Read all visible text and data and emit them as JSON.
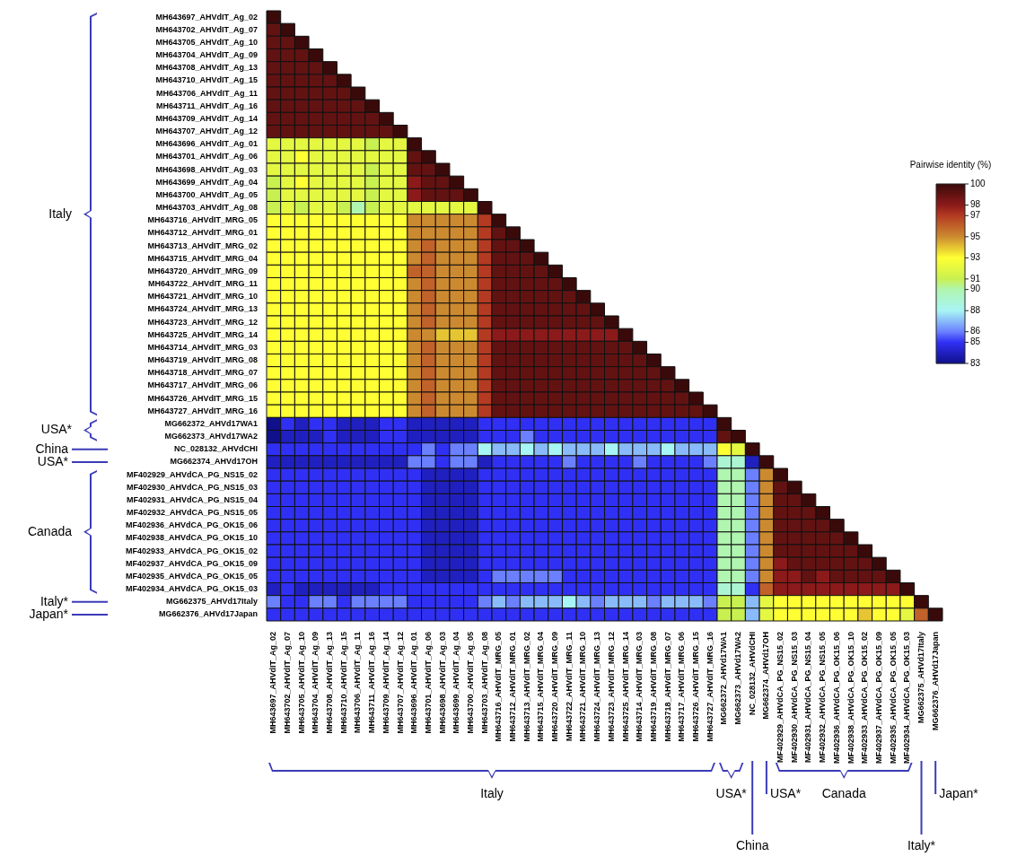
{
  "chart_data": {
    "type": "heatmap",
    "clabel": "Pairwise identity (%)",
    "clim": [
      83,
      100
    ],
    "cticks": [
      100,
      98,
      97,
      95,
      93,
      91,
      90,
      88,
      86,
      85,
      83
    ],
    "categories": [
      "MH643697_AHVdIT_Ag_02",
      "MH643702_AHVdIT_Ag_07",
      "MH643705_AHVdIT_Ag_10",
      "MH643704_AHVdIT_Ag_09",
      "MH643708_AHVdIT_Ag_13",
      "MH643710_AHVdIT_Ag_15",
      "MH643706_AHVdIT_Ag_11",
      "MH643711_AHVdIT_Ag_16",
      "MH643709_AHVdIT_Ag_14",
      "MH643707_AHVdIT_Ag_12",
      "MH643696_AHVdIT_Ag_01",
      "MH643701_AHVdIT_Ag_06",
      "MH643698_AHVdIT_Ag_03",
      "MH643699_AHVdIT_Ag_04",
      "MH643700_AHVdIT_Ag_05",
      "MH643703_AHVdIT_Ag_08",
      "MH643716_AHVdIT_MRG_05",
      "MH643712_AHVdIT_MRG_01",
      "MH643713_AHVdIT_MRG_02",
      "MH643715_AHVdIT_MRG_04",
      "MH643720_AHVdIT_MRG_09",
      "MH643722_AHVdIT_MRG_11",
      "MH643721_AHVdIT_MRG_10",
      "MH643724_AHVdIT_MRG_13",
      "MH643723_AHVdIT_MRG_12",
      "MH643725_AHVdIT_MRG_14",
      "MH643714_AHVdIT_MRG_03",
      "MH643719_AHVdIT_MRG_08",
      "MH643718_AHVdIT_MRG_07",
      "MH643717_AHVdIT_MRG_06",
      "MH643726_AHVdIT_MRG_15",
      "MH643727_AHVdIT_MRG_16",
      "MG662372_AHVd17WA1",
      "MG662373_AHVd17WA2",
      "NC_028132_AHVdCHI",
      "MG662374_AHVd17OH",
      "MF402929_AHVdCA_PG_NS15_02",
      "MF402930_AHVdCA_PG_NS15_03",
      "MF402931_AHVdCA_PG_NS15_04",
      "MF402932_AHVdCA_PG_NS15_05",
      "MF402936_AHVdCA_PG_OK15_06",
      "MF402938_AHVdCA_PG_OK15_10",
      "MF402933_AHVdCA_PG_OK15_02",
      "MF402937_AHVdCA_PG_OK15_09",
      "MF402935_AHVdCA_PG_OK15_05",
      "MF402934_AHVdCA_PG_OK15_03",
      "MG662375_AHVd17Italy",
      "MG662376_AHVd17Japan"
    ],
    "y_categories": [
      "MH643697_AHVdIT_Ag_02",
      "MH643702_AHVdIT_Ag_07",
      "MH643705_AHVdIT_Ag_10",
      "MH643704_AHVdIT_Ag_09",
      "MH643708_AHVdIT_Ag_13",
      "MH643710_AHVdIT_Ag_15",
      "MH643706_AHVdIT_Ag_11",
      "MH643711_AHVdIT_Ag_16",
      "MH643709_AHVdIT_Ag_14",
      "MH643707_AHVdIT_Ag_12",
      "MH643696_AHVdIT_Ag_01",
      "MH643701_AHVdIT_Ag_06",
      "MH643698_AHVdIT_Ag_03",
      "MH643699_AHVdIT_Ag_04",
      "MH643700_AHVdIT_Ag_05",
      "MH643703_AHVdIT_Ag_08",
      "MH643716_AHVdIT_MRG_05",
      "MH643712_AHVdIT_MRG_01",
      "MH643713_AHVdIT_MRG_02",
      "MH643715_AHVdIT_MRG_04",
      "MH643720_AHVdIT_MRG_09",
      "MH643722_AHVdIT_MRG_11",
      "MH643721_AHVdIT_MRG_10",
      "MH643724_AHVdIT_MRG_13",
      "MH643723_AHVdIT_MRG_12",
      "MH643725_AHVdIT_MRG_14",
      "MH643714_AHVdIT_MRG_03",
      "MH643719_AHVdIT_MRG_08",
      "MH643718_AHVdIT_MRG_07",
      "MH643717_AHVdIT_MRG_06",
      "MH643726_AHVdIT_MRG_15",
      "MH643727_AHVdIT_MRG_16",
      "MG662372_AHVd17WA1",
      "MG662373_AHVd17WA2",
      "NC_028132_AHVdCHI",
      "MG662374_AHVd17OH",
      "MF402929_AHVdCA_PG_NS15_02",
      "MF402930_AHVdCA_PG_NS15_03",
      "MF402931_AHVdCA_PG_NS15_04",
      "MF402932_AHVdCA_PG_NS15_05",
      "MF402936_AHVdCA_PG_OK15_06",
      "MF402938_AHVdCA_PG_OK15_10",
      "MF402933_AHVdCA_PG_OK15_02",
      "MF402937_AHVdCA_PG_OK15_09",
      "MF402935_AHVdCA_PG_OK15_05",
      "MF402934_AHVdCA_PG_OK15_03",
      "MG662375_AHVd17Italy",
      "MG662376_AHVd17Japan"
    ],
    "cells": [
      [
        100,
        null,
        null,
        null,
        null,
        null,
        null,
        null,
        null,
        null,
        null,
        null,
        null,
        null,
        null,
        null,
        null,
        null,
        null,
        null,
        null,
        null,
        null,
        null,
        null,
        null,
        null,
        null,
        null,
        null,
        null,
        null,
        null,
        null,
        null,
        null,
        null,
        null,
        null,
        null,
        null,
        null,
        null,
        null,
        null,
        null,
        null,
        null
      ],
      [
        99,
        100,
        null,
        null,
        null,
        null,
        null,
        null,
        null,
        null,
        null,
        null,
        null,
        null,
        null,
        null,
        null,
        null,
        null,
        null,
        null,
        null,
        null,
        null,
        null,
        null,
        null,
        null,
        null,
        null,
        null,
        null,
        null,
        null,
        null,
        null,
        null,
        null,
        null,
        null,
        null,
        null,
        null,
        null,
        null,
        null,
        null,
        null
      ],
      [
        99,
        99,
        100,
        null,
        null,
        null,
        null,
        null,
        null,
        null,
        null,
        null,
        null,
        null,
        null,
        null,
        null,
        null,
        null,
        null,
        null,
        null,
        null,
        null,
        null,
        null,
        null,
        null,
        null,
        null,
        null,
        null,
        null,
        null,
        null,
        null,
        null,
        null,
        null,
        null,
        null,
        null,
        null,
        null,
        null,
        null,
        null,
        null
      ],
      [
        99,
        99,
        99,
        100,
        null,
        null,
        null,
        null,
        null,
        null,
        null,
        null,
        null,
        null,
        null,
        null,
        null,
        null,
        null,
        null,
        null,
        null,
        null,
        null,
        null,
        null,
        null,
        null,
        null,
        null,
        null,
        null,
        null,
        null,
        null,
        null,
        null,
        null,
        null,
        null,
        null,
        null,
        null,
        null,
        null,
        null,
        null,
        null
      ],
      [
        99,
        99,
        99,
        99,
        100,
        null,
        null,
        null,
        null,
        null,
        null,
        null,
        null,
        null,
        null,
        null,
        null,
        null,
        null,
        null,
        null,
        null,
        null,
        null,
        null,
        null,
        null,
        null,
        null,
        null,
        null,
        null,
        null,
        null,
        null,
        null,
        null,
        null,
        null,
        null,
        null,
        null,
        null,
        null,
        null,
        null,
        null,
        null
      ],
      [
        99,
        99,
        99,
        99,
        99,
        100,
        null,
        null,
        null,
        null,
        null,
        null,
        null,
        null,
        null,
        null,
        null,
        null,
        null,
        null,
        null,
        null,
        null,
        null,
        null,
        null,
        null,
        null,
        null,
        null,
        null,
        null,
        null,
        null,
        null,
        null,
        null,
        null,
        null,
        null,
        null,
        null,
        null,
        null,
        null,
        null,
        null,
        null
      ],
      [
        99,
        99,
        99,
        99,
        99,
        99,
        100,
        null,
        null,
        null,
        null,
        null,
        null,
        null,
        null,
        null,
        null,
        null,
        null,
        null,
        null,
        null,
        null,
        null,
        null,
        null,
        null,
        null,
        null,
        null,
        null,
        null,
        null,
        null,
        null,
        null,
        null,
        null,
        null,
        null,
        null,
        null,
        null,
        null,
        null,
        null,
        null,
        null
      ],
      [
        99,
        99,
        99,
        99,
        99,
        99,
        99,
        100,
        null,
        null,
        null,
        null,
        null,
        null,
        null,
        null,
        null,
        null,
        null,
        null,
        null,
        null,
        null,
        null,
        null,
        null,
        null,
        null,
        null,
        null,
        null,
        null,
        null,
        null,
        null,
        null,
        null,
        null,
        null,
        null,
        null,
        null,
        null,
        null,
        null,
        null,
        null,
        null
      ],
      [
        99,
        99,
        99,
        99,
        99,
        99,
        99,
        99,
        100,
        null,
        null,
        null,
        null,
        null,
        null,
        null,
        null,
        null,
        null,
        null,
        null,
        null,
        null,
        null,
        null,
        null,
        null,
        null,
        null,
        null,
        null,
        null,
        null,
        null,
        null,
        null,
        null,
        null,
        null,
        null,
        null,
        null,
        null,
        null,
        null,
        null,
        null,
        null
      ],
      [
        99,
        99,
        99,
        99,
        99,
        99,
        99,
        99,
        99,
        100,
        null,
        null,
        null,
        null,
        null,
        null,
        null,
        null,
        null,
        null,
        null,
        null,
        null,
        null,
        null,
        null,
        null,
        null,
        null,
        null,
        null,
        null,
        null,
        null,
        null,
        null,
        null,
        null,
        null,
        null,
        null,
        null,
        null,
        null,
        null,
        null,
        null,
        null
      ],
      [
        92,
        92,
        92,
        92,
        92,
        92,
        92,
        91,
        92,
        92,
        100,
        null,
        null,
        null,
        null,
        null,
        null,
        null,
        null,
        null,
        null,
        null,
        null,
        null,
        null,
        null,
        null,
        null,
        null,
        null,
        null,
        null,
        null,
        null,
        null,
        null,
        null,
        null,
        null,
        null,
        null,
        null,
        null,
        null,
        null,
        null,
        null,
        null
      ],
      [
        92,
        92,
        93,
        92,
        92,
        92,
        92,
        92,
        92,
        92,
        99,
        100,
        null,
        null,
        null,
        null,
        null,
        null,
        null,
        null,
        null,
        null,
        null,
        null,
        null,
        null,
        null,
        null,
        null,
        null,
        null,
        null,
        null,
        null,
        null,
        null,
        null,
        null,
        null,
        null,
        null,
        null,
        null,
        null,
        null,
        null,
        null,
        null
      ],
      [
        92,
        92,
        92,
        92,
        92,
        92,
        92,
        91,
        92,
        92,
        99,
        99,
        100,
        null,
        null,
        null,
        null,
        null,
        null,
        null,
        null,
        null,
        null,
        null,
        null,
        null,
        null,
        null,
        null,
        null,
        null,
        null,
        null,
        null,
        null,
        null,
        null,
        null,
        null,
        null,
        null,
        null,
        null,
        null,
        null,
        null,
        null,
        null
      ],
      [
        91,
        92,
        93,
        92,
        92,
        92,
        92,
        91,
        92,
        92,
        98,
        99,
        99,
        100,
        null,
        null,
        null,
        null,
        null,
        null,
        null,
        null,
        null,
        null,
        null,
        null,
        null,
        null,
        null,
        null,
        null,
        null,
        null,
        null,
        null,
        null,
        null,
        null,
        null,
        null,
        null,
        null,
        null,
        null,
        null,
        null,
        null,
        null
      ],
      [
        91,
        92,
        92,
        92,
        92,
        92,
        92,
        91,
        92,
        92,
        98,
        99,
        99,
        99,
        100,
        null,
        null,
        null,
        null,
        null,
        null,
        null,
        null,
        null,
        null,
        null,
        null,
        null,
        null,
        null,
        null,
        null,
        null,
        null,
        null,
        null,
        null,
        null,
        null,
        null,
        null,
        null,
        null,
        null,
        null,
        null,
        null,
        null
      ],
      [
        91,
        92,
        91,
        92,
        92,
        91,
        90,
        91,
        92,
        92,
        92,
        92,
        92,
        92,
        92,
        100,
        null,
        null,
        null,
        null,
        null,
        null,
        null,
        null,
        null,
        null,
        null,
        null,
        null,
        null,
        null,
        null,
        null,
        null,
        null,
        null,
        null,
        null,
        null,
        null,
        null,
        null,
        null,
        null,
        null,
        null,
        null,
        null
      ],
      [
        93,
        93,
        93,
        93,
        93,
        93,
        93,
        93,
        93,
        93,
        95,
        95,
        95,
        95,
        95,
        97,
        100,
        null,
        null,
        null,
        null,
        null,
        null,
        null,
        null,
        null,
        null,
        null,
        null,
        null,
        null,
        null,
        null,
        null,
        null,
        null,
        null,
        null,
        null,
        null,
        null,
        null,
        null,
        null,
        null,
        null,
        null,
        null
      ],
      [
        93,
        93,
        93,
        93,
        93,
        93,
        93,
        93,
        93,
        93,
        95,
        95,
        95,
        95,
        95,
        97,
        99,
        100,
        null,
        null,
        null,
        null,
        null,
        null,
        null,
        null,
        null,
        null,
        null,
        null,
        null,
        null,
        null,
        null,
        null,
        null,
        null,
        null,
        null,
        null,
        null,
        null,
        null,
        null,
        null,
        null,
        null,
        null
      ],
      [
        93,
        93,
        93,
        93,
        93,
        93,
        93,
        93,
        93,
        93,
        95,
        96,
        95,
        95,
        95,
        97,
        99,
        99,
        100,
        null,
        null,
        null,
        null,
        null,
        null,
        null,
        null,
        null,
        null,
        null,
        null,
        null,
        null,
        null,
        null,
        null,
        null,
        null,
        null,
        null,
        null,
        null,
        null,
        null,
        null,
        null,
        null,
        null
      ],
      [
        93,
        93,
        93,
        93,
        93,
        93,
        93,
        93,
        93,
        93,
        95,
        96,
        95,
        95,
        95,
        97,
        99,
        99,
        99,
        100,
        null,
        null,
        null,
        null,
        null,
        null,
        null,
        null,
        null,
        null,
        null,
        null,
        null,
        null,
        null,
        null,
        null,
        null,
        null,
        null,
        null,
        null,
        null,
        null,
        null,
        null,
        null,
        null
      ],
      [
        93,
        93,
        93,
        93,
        93,
        93,
        93,
        93,
        93,
        93,
        96,
        96,
        95,
        95,
        95,
        97,
        99,
        99,
        99,
        99,
        100,
        null,
        null,
        null,
        null,
        null,
        null,
        null,
        null,
        null,
        null,
        null,
        null,
        null,
        null,
        null,
        null,
        null,
        null,
        null,
        null,
        null,
        null,
        null,
        null,
        null,
        null,
        null
      ],
      [
        93,
        93,
        93,
        93,
        93,
        93,
        93,
        93,
        93,
        93,
        95,
        96,
        95,
        95,
        95,
        97,
        99,
        99,
        99,
        99,
        99,
        100,
        null,
        null,
        null,
        null,
        null,
        null,
        null,
        null,
        null,
        null,
        null,
        null,
        null,
        null,
        null,
        null,
        null,
        null,
        null,
        null,
        null,
        null,
        null,
        null,
        null,
        null
      ],
      [
        93,
        93,
        93,
        93,
        93,
        93,
        93,
        93,
        93,
        93,
        95,
        96,
        95,
        95,
        95,
        97,
        99,
        99,
        99,
        99,
        99,
        99,
        100,
        null,
        null,
        null,
        null,
        null,
        null,
        null,
        null,
        null,
        null,
        null,
        null,
        null,
        null,
        null,
        null,
        null,
        null,
        null,
        null,
        null,
        null,
        null,
        null,
        null
      ],
      [
        93,
        93,
        93,
        93,
        93,
        93,
        93,
        93,
        93,
        93,
        95,
        96,
        95,
        95,
        95,
        97,
        99,
        99,
        99,
        99,
        99,
        99,
        99,
        100,
        null,
        null,
        null,
        null,
        null,
        null,
        null,
        null,
        null,
        null,
        null,
        null,
        null,
        null,
        null,
        null,
        null,
        null,
        null,
        null,
        null,
        null,
        null,
        null
      ],
      [
        93,
        93,
        93,
        93,
        93,
        93,
        93,
        93,
        93,
        93,
        95,
        96,
        95,
        95,
        95,
        97,
        99,
        99,
        99,
        99,
        99,
        99,
        99,
        99,
        100,
        null,
        null,
        null,
        null,
        null,
        null,
        null,
        null,
        null,
        null,
        null,
        null,
        null,
        null,
        null,
        null,
        null,
        null,
        null,
        null,
        null,
        null,
        null
      ],
      [
        93,
        93,
        93,
        93,
        93,
        93,
        93,
        93,
        93,
        93,
        95,
        95,
        94,
        94,
        94,
        97,
        98,
        98,
        98,
        98,
        98,
        98,
        98,
        98,
        98,
        100,
        null,
        null,
        null,
        null,
        null,
        null,
        null,
        null,
        null,
        null,
        null,
        null,
        null,
        null,
        null,
        null,
        null,
        null,
        null,
        null,
        null,
        null
      ],
      [
        93,
        93,
        93,
        93,
        93,
        93,
        93,
        93,
        93,
        93,
        95,
        96,
        95,
        95,
        95,
        97,
        99,
        99,
        99,
        99,
        99,
        99,
        99,
        99,
        99,
        99,
        100,
        null,
        null,
        null,
        null,
        null,
        null,
        null,
        null,
        null,
        null,
        null,
        null,
        null,
        null,
        null,
        null,
        null,
        null,
        null,
        null,
        null
      ],
      [
        93,
        93,
        93,
        93,
        93,
        93,
        93,
        93,
        93,
        93,
        95,
        96,
        95,
        95,
        95,
        97,
        99,
        99,
        99,
        99,
        99,
        99,
        99,
        99,
        99,
        99,
        99,
        100,
        null,
        null,
        null,
        null,
        null,
        null,
        null,
        null,
        null,
        null,
        null,
        null,
        null,
        null,
        null,
        null,
        null,
        null,
        null,
        null
      ],
      [
        93,
        93,
        93,
        93,
        93,
        93,
        93,
        93,
        93,
        93,
        95,
        96,
        95,
        95,
        95,
        97,
        99,
        99,
        99,
        99,
        99,
        99,
        99,
        99,
        99,
        99,
        99,
        99,
        100,
        null,
        null,
        null,
        null,
        null,
        null,
        null,
        null,
        null,
        null,
        null,
        null,
        null,
        null,
        null,
        null,
        null,
        null,
        null
      ],
      [
        93,
        93,
        93,
        93,
        93,
        93,
        93,
        93,
        93,
        93,
        95,
        96,
        95,
        95,
        95,
        97,
        99,
        99,
        99,
        99,
        99,
        99,
        99,
        99,
        99,
        99,
        99,
        99,
        99,
        100,
        null,
        null,
        null,
        null,
        null,
        null,
        null,
        null,
        null,
        null,
        null,
        null,
        null,
        null,
        null,
        null,
        null,
        null
      ],
      [
        93,
        93,
        93,
        93,
        93,
        93,
        93,
        93,
        93,
        93,
        95,
        96,
        95,
        95,
        95,
        97,
        99,
        99,
        99,
        99,
        99,
        99,
        99,
        99,
        99,
        99,
        99,
        99,
        99,
        99,
        100,
        null,
        null,
        null,
        null,
        null,
        null,
        null,
        null,
        null,
        null,
        null,
        null,
        null,
        null,
        null,
        null,
        null
      ],
      [
        93,
        93,
        93,
        93,
        93,
        93,
        93,
        93,
        93,
        93,
        95,
        96,
        95,
        95,
        95,
        97,
        99,
        99,
        99,
        99,
        99,
        99,
        99,
        99,
        99,
        99,
        99,
        99,
        99,
        99,
        99,
        100,
        null,
        null,
        null,
        null,
        null,
        null,
        null,
        null,
        null,
        null,
        null,
        null,
        null,
        null,
        null,
        null
      ],
      [
        83,
        85,
        84,
        85,
        85,
        84,
        84,
        84,
        85,
        85,
        84,
        84,
        84,
        84,
        84,
        85,
        85,
        85,
        85,
        85,
        85,
        85,
        85,
        85,
        85,
        85,
        85,
        85,
        85,
        85,
        85,
        85,
        100,
        null,
        null,
        null,
        null,
        null,
        null,
        null,
        null,
        null,
        null,
        null,
        null,
        null,
        null,
        null
      ],
      [
        83,
        84,
        84,
        84,
        85,
        84,
        84,
        84,
        85,
        85,
        84,
        84,
        84,
        84,
        84,
        85,
        85,
        85,
        86,
        85,
        85,
        85,
        85,
        85,
        85,
        85,
        85,
        85,
        85,
        85,
        85,
        85,
        99,
        100,
        null,
        null,
        null,
        null,
        null,
        null,
        null,
        null,
        null,
        null,
        null,
        null,
        null,
        null
      ],
      [
        85,
        85,
        85,
        85,
        85,
        85,
        85,
        85,
        85,
        85,
        85,
        86,
        85,
        86,
        86,
        88,
        87,
        87,
        88,
        87,
        88,
        87,
        87,
        87,
        88,
        87,
        87,
        87,
        88,
        87,
        87,
        87,
        93,
        92,
        100,
        null,
        null,
        null,
        null,
        null,
        null,
        null,
        null,
        null,
        null,
        null,
        null,
        null
      ],
      [
        84,
        84,
        84,
        84,
        84,
        84,
        84,
        84,
        84,
        84,
        86,
        86,
        85,
        86,
        86,
        84,
        85,
        85,
        85,
        85,
        85,
        86,
        85,
        85,
        85,
        85,
        86,
        85,
        85,
        85,
        85,
        86,
        89,
        89,
        84,
        100,
        null,
        null,
        null,
        null,
        null,
        null,
        null,
        null,
        null,
        null,
        null,
        null
      ],
      [
        85,
        85,
        85,
        85,
        85,
        85,
        85,
        85,
        85,
        85,
        85,
        84,
        84,
        84,
        84,
        85,
        85,
        85,
        85,
        85,
        85,
        85,
        85,
        85,
        85,
        85,
        85,
        85,
        85,
        85,
        85,
        85,
        90,
        90,
        86,
        95,
        100,
        null,
        null,
        null,
        null,
        null,
        null,
        null,
        null,
        null,
        null,
        null
      ],
      [
        85,
        85,
        85,
        85,
        85,
        85,
        85,
        85,
        85,
        85,
        85,
        84,
        84,
        84,
        84,
        85,
        85,
        85,
        85,
        85,
        85,
        85,
        85,
        85,
        85,
        85,
        85,
        85,
        85,
        85,
        85,
        85,
        90,
        90,
        86,
        95,
        99,
        100,
        null,
        null,
        null,
        null,
        null,
        null,
        null,
        null,
        null,
        null
      ],
      [
        85,
        85,
        85,
        85,
        85,
        85,
        85,
        85,
        85,
        85,
        85,
        84,
        84,
        84,
        84,
        85,
        85,
        85,
        85,
        85,
        85,
        85,
        85,
        85,
        85,
        85,
        85,
        85,
        85,
        85,
        85,
        85,
        90,
        90,
        86,
        95,
        99,
        99,
        100,
        null,
        null,
        null,
        null,
        null,
        null,
        null,
        null,
        null
      ],
      [
        85,
        85,
        85,
        85,
        85,
        85,
        85,
        85,
        85,
        85,
        85,
        84,
        84,
        84,
        84,
        85,
        85,
        85,
        85,
        85,
        85,
        85,
        85,
        85,
        85,
        85,
        85,
        85,
        85,
        85,
        85,
        85,
        90,
        90,
        86,
        95,
        99,
        99,
        99,
        100,
        null,
        null,
        null,
        null,
        null,
        null,
        null,
        null
      ],
      [
        85,
        85,
        85,
        85,
        85,
        85,
        85,
        85,
        85,
        85,
        85,
        84,
        84,
        84,
        84,
        85,
        85,
        85,
        85,
        85,
        85,
        85,
        85,
        85,
        85,
        85,
        85,
        85,
        85,
        85,
        85,
        85,
        90,
        90,
        86,
        95,
        99,
        99,
        99,
        99,
        100,
        null,
        null,
        null,
        null,
        null,
        null,
        null
      ],
      [
        85,
        85,
        85,
        85,
        85,
        85,
        85,
        85,
        85,
        85,
        85,
        84,
        84,
        84,
        84,
        85,
        85,
        85,
        85,
        85,
        85,
        85,
        85,
        85,
        85,
        85,
        85,
        85,
        85,
        85,
        85,
        85,
        90,
        90,
        86,
        95,
        99,
        99,
        99,
        99,
        99,
        100,
        null,
        null,
        null,
        null,
        null,
        null
      ],
      [
        85,
        85,
        85,
        85,
        85,
        85,
        85,
        85,
        85,
        85,
        85,
        84,
        84,
        84,
        84,
        85,
        85,
        85,
        85,
        85,
        85,
        85,
        85,
        85,
        85,
        85,
        85,
        85,
        85,
        85,
        85,
        85,
        90,
        90,
        86,
        95,
        99,
        99,
        99,
        99,
        99,
        99,
        100,
        null,
        null,
        null,
        null,
        null
      ],
      [
        85,
        85,
        85,
        85,
        85,
        85,
        85,
        85,
        85,
        85,
        85,
        84,
        84,
        84,
        84,
        85,
        85,
        85,
        85,
        85,
        85,
        85,
        85,
        85,
        85,
        85,
        85,
        85,
        85,
        85,
        85,
        85,
        90,
        90,
        86,
        95,
        98,
        99,
        99,
        99,
        99,
        99,
        99,
        100,
        null,
        null,
        null,
        null
      ],
      [
        85,
        85,
        85,
        85,
        85,
        85,
        85,
        85,
        85,
        85,
        85,
        84,
        84,
        84,
        84,
        85,
        86,
        86,
        86,
        86,
        86,
        85,
        85,
        85,
        85,
        85,
        85,
        85,
        85,
        85,
        85,
        85,
        90,
        90,
        86,
        95,
        98,
        98,
        99,
        98,
        99,
        99,
        99,
        99,
        100,
        null,
        null,
        null
      ],
      [
        84,
        85,
        84,
        84,
        84,
        84,
        84,
        84,
        85,
        85,
        85,
        85,
        85,
        85,
        85,
        85,
        85,
        85,
        85,
        85,
        85,
        85,
        85,
        85,
        85,
        85,
        85,
        85,
        85,
        85,
        85,
        85,
        89,
        89,
        85,
        96,
        98,
        98,
        98,
        98,
        98,
        98,
        98,
        98,
        98,
        100,
        null,
        null
      ],
      [
        86,
        85,
        85,
        86,
        86,
        85,
        86,
        86,
        86,
        86,
        85,
        85,
        85,
        85,
        85,
        86,
        87,
        86,
        87,
        87,
        87,
        88,
        87,
        86,
        87,
        87,
        87,
        86,
        87,
        87,
        87,
        86,
        91,
        91,
        87,
        92,
        93,
        93,
        93,
        93,
        93,
        93,
        93,
        93,
        93,
        93,
        100,
        null
      ],
      [
        85,
        85,
        85,
        85,
        85,
        85,
        85,
        85,
        85,
        85,
        85,
        85,
        85,
        85,
        85,
        85,
        85,
        85,
        85,
        85,
        85,
        85,
        85,
        85,
        85,
        85,
        85,
        85,
        85,
        85,
        85,
        85,
        91,
        91,
        87,
        92,
        93,
        93,
        93,
        93,
        93,
        93,
        94,
        93,
        93,
        92,
        96,
        100
      ]
    ],
    "annotations": [
      "Italy",
      "USA*",
      "China",
      "USA*",
      "Canada",
      "Italy*",
      "Japan*",
      "Italy",
      "USA*",
      "China",
      "USA*",
      "Canada",
      "Italy*",
      "Japan*"
    ]
  }
}
